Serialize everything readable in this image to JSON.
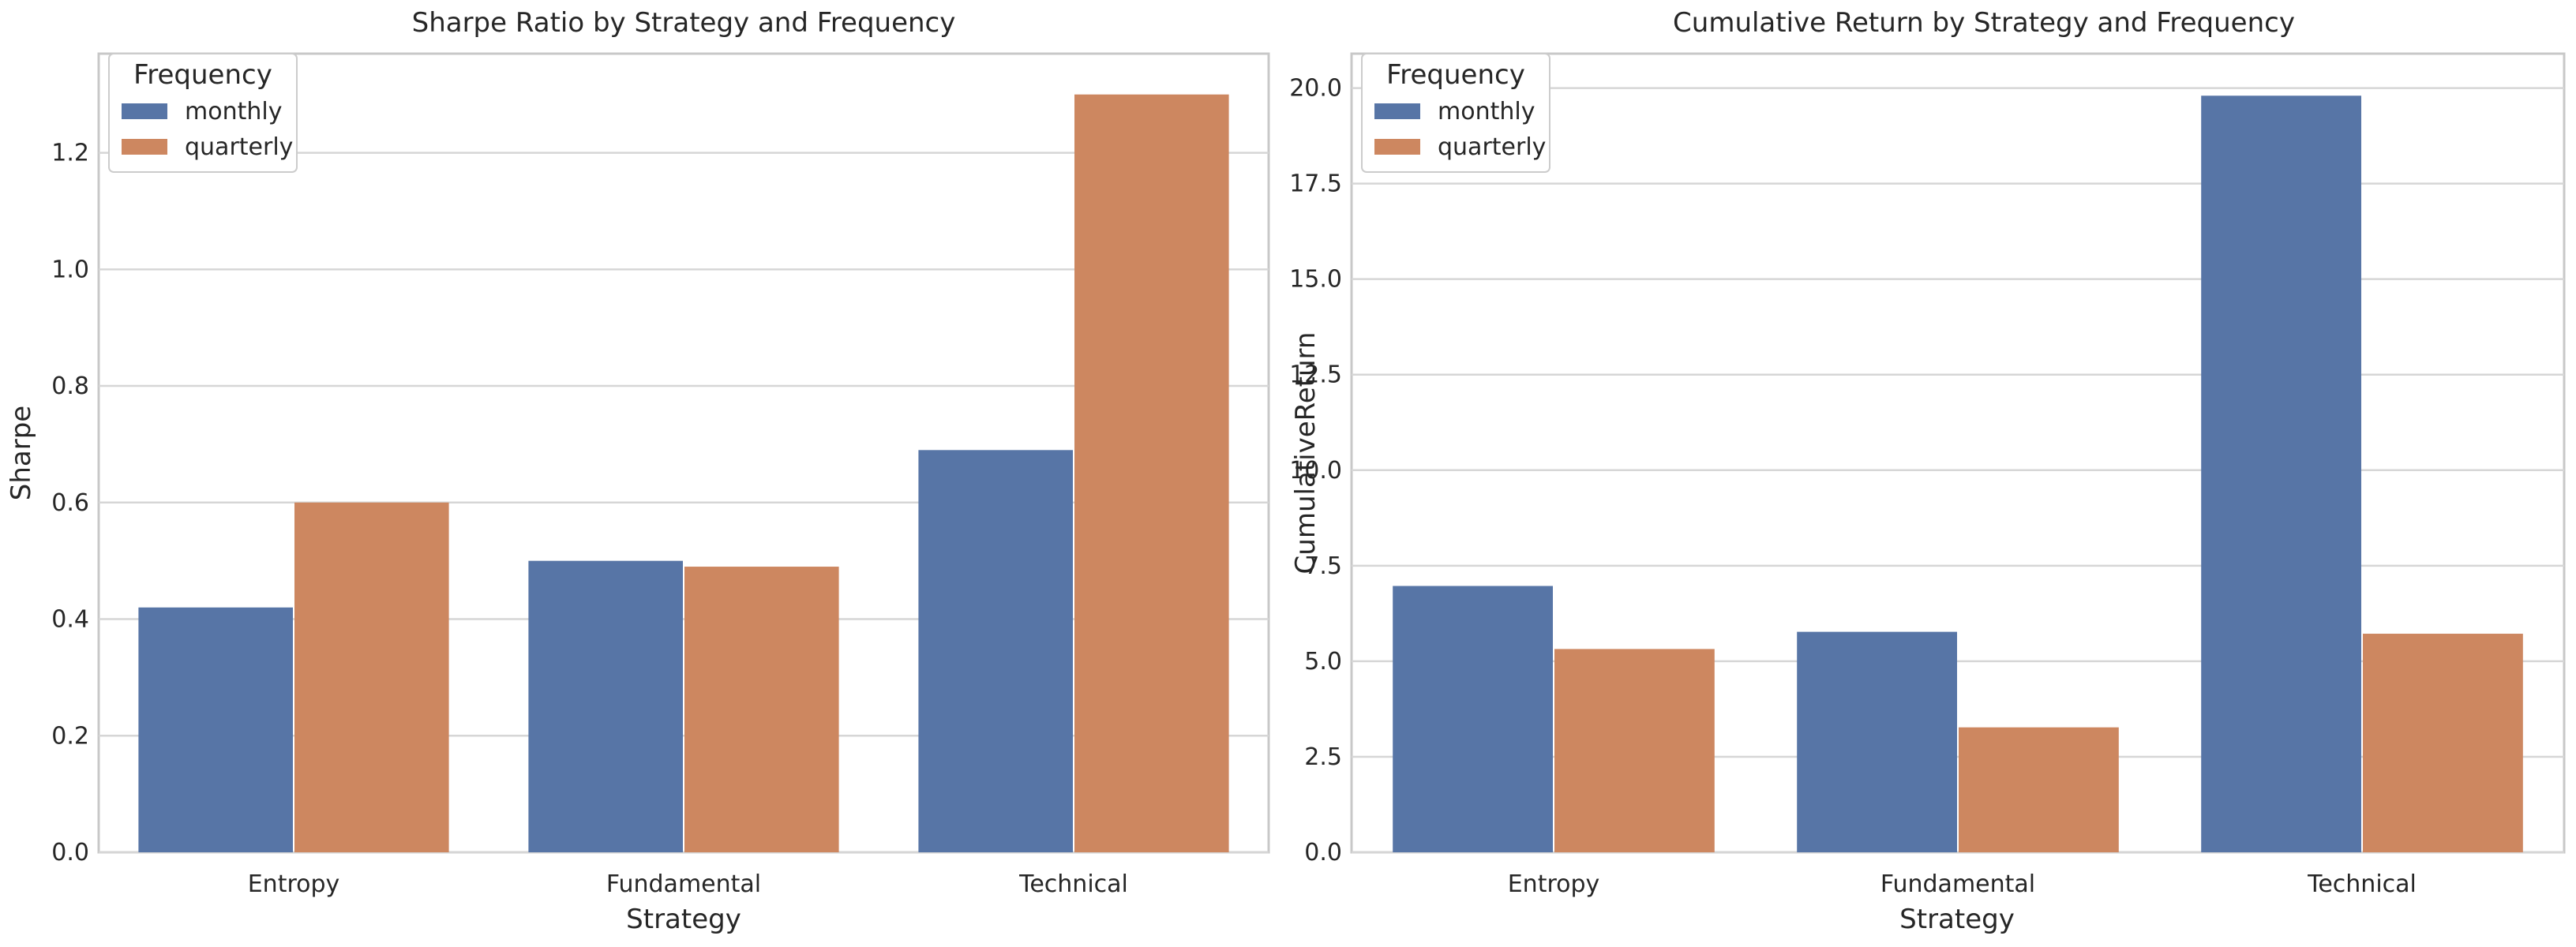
{
  "colors": {
    "monthly": "#5775a6",
    "quarterly": "#cd8760"
  },
  "chart_data": [
    {
      "type": "bar",
      "title": "Sharpe Ratio by Strategy and Frequency",
      "xlabel": "Strategy",
      "ylabel": "Sharpe",
      "categories": [
        "Entropy",
        "Fundamental",
        "Technical"
      ],
      "ylim": [
        0,
        1.37
      ],
      "yticks": [
        0.0,
        0.2,
        0.4,
        0.6,
        0.8,
        1.0,
        1.2
      ],
      "ytick_labels": [
        "0.0",
        "0.2",
        "0.4",
        "0.6",
        "0.8",
        "1.0",
        "1.2"
      ],
      "legend": {
        "title": "Frequency",
        "placement": "top-left"
      },
      "series": [
        {
          "name": "monthly",
          "values": [
            0.42,
            0.5,
            0.69
          ]
        },
        {
          "name": "quarterly",
          "values": [
            0.6,
            0.49,
            1.3
          ]
        }
      ]
    },
    {
      "type": "bar",
      "title": "Cumulative Return by Strategy and Frequency",
      "xlabel": "Strategy",
      "ylabel": "CumulativeReturn",
      "categories": [
        "Entropy",
        "Fundamental",
        "Technical"
      ],
      "ylim": [
        0,
        20.9
      ],
      "yticks": [
        0.0,
        2.5,
        5.0,
        7.5,
        10.0,
        12.5,
        15.0,
        17.5,
        20.0
      ],
      "ytick_labels": [
        "0.0",
        "2.5",
        "5.0",
        "7.5",
        "10.0",
        "12.5",
        "15.0",
        "17.5",
        "20.0"
      ],
      "legend": {
        "title": "Frequency",
        "placement": "top-left"
      },
      "series": [
        {
          "name": "monthly",
          "values": [
            6.97,
            5.77,
            19.8
          ]
        },
        {
          "name": "quarterly",
          "values": [
            5.32,
            3.27,
            5.72
          ]
        }
      ]
    }
  ]
}
